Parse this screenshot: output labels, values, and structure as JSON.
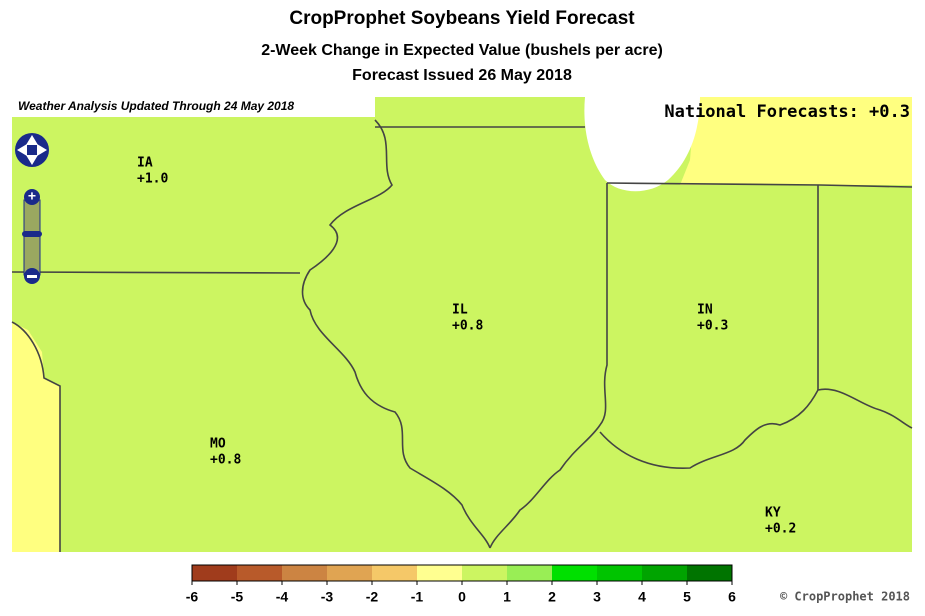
{
  "header": {
    "title": "CropProphet Soybeans Yield Forecast",
    "subtitle": "2-Week Change in Expected Value (bushels per acre)",
    "issued": "Forecast Issued 26 May 2018"
  },
  "map": {
    "analysis_note": "Weather Analysis Updated Through 24 May 2018",
    "national": "National Forecasts: +0.3",
    "states": [
      {
        "name": "IA",
        "value": "+1.0"
      },
      {
        "name": "IL",
        "value": "+0.8"
      },
      {
        "name": "IN",
        "value": "+0.3"
      },
      {
        "name": "MO",
        "value": "+0.8"
      },
      {
        "name": "KY",
        "value": "+0.2"
      }
    ]
  },
  "legend": {
    "ticks": [
      -6,
      -5,
      -4,
      -3,
      -2,
      -1,
      0,
      1,
      2,
      3,
      4,
      5,
      6
    ],
    "colors": [
      "#a03c1c",
      "#b85a2a",
      "#cc8442",
      "#e0a452",
      "#f5c868",
      "#ffff90",
      "#ccf561",
      "#99ee55",
      "#00e000",
      "#00c400",
      "#00a400",
      "#007400"
    ]
  },
  "footer": {
    "copyright": "© CropProphet 2018"
  }
}
